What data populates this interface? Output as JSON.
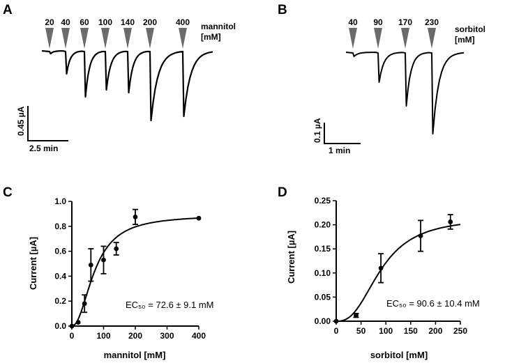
{
  "panels": {
    "A": {
      "letter": "A",
      "concentrations": [
        "20",
        "40",
        "60",
        "100",
        "140",
        "200",
        "400"
      ],
      "agent_label": "mannitol",
      "unit_label": "[mM]",
      "scale_y": "0.45 µA",
      "scale_x": "2.5 min"
    },
    "B": {
      "letter": "B",
      "concentrations": [
        "40",
        "90",
        "170",
        "230"
      ],
      "agent_label": "sorbitol",
      "unit_label": "[mM]",
      "scale_y": "0.1 µA",
      "scale_x": "1 min"
    },
    "C": {
      "letter": "C",
      "ec50_text": "EC₅₀ = 72.6 ± 9.1 mM"
    },
    "D": {
      "letter": "D",
      "ec50_text": "EC₅₀ = 90.6 ± 10.4 mM"
    }
  },
  "chart_data": [
    {
      "panel": "C",
      "type": "scatter",
      "xlabel": "mannitol [mM]",
      "ylabel": "Current [µA]",
      "xlim": [
        0,
        400
      ],
      "ylim": [
        0,
        1.0
      ],
      "xticks": [
        "0",
        "100",
        "200",
        "300",
        "400"
      ],
      "yticks": [
        "0.0",
        "0.2",
        "0.4",
        "0.6",
        "0.8",
        "1.0"
      ],
      "x": [
        0,
        20,
        40,
        60,
        100,
        140,
        200,
        400
      ],
      "y": [
        0.0,
        0.03,
        0.18,
        0.49,
        0.53,
        0.62,
        0.875,
        0.865
      ],
      "error": [
        0,
        0,
        0.07,
        0.13,
        0.11,
        0.05,
        0.06,
        0
      ],
      "fit": {
        "model": "hill",
        "ec50": 72.6,
        "max": 0.89,
        "n": 2.1
      }
    },
    {
      "panel": "D",
      "type": "scatter",
      "xlabel": "sorbitol [mM]",
      "ylabel": "Current [µA]",
      "xlim": [
        0,
        250
      ],
      "ylim": [
        0,
        0.25
      ],
      "xticks": [
        "0",
        "50",
        "100",
        "150",
        "200",
        "250"
      ],
      "yticks": [
        "0.00",
        "0.05",
        "0.10",
        "0.15",
        "0.20",
        "0.25"
      ],
      "x": [
        0,
        40,
        90,
        170,
        230
      ],
      "y": [
        0.0,
        0.012,
        0.11,
        0.177,
        0.206
      ],
      "error": [
        0,
        0.004,
        0.03,
        0.032,
        0.015
      ],
      "fit": {
        "model": "hill",
        "ec50": 90.6,
        "max": 0.215,
        "n": 2.6
      }
    }
  ]
}
